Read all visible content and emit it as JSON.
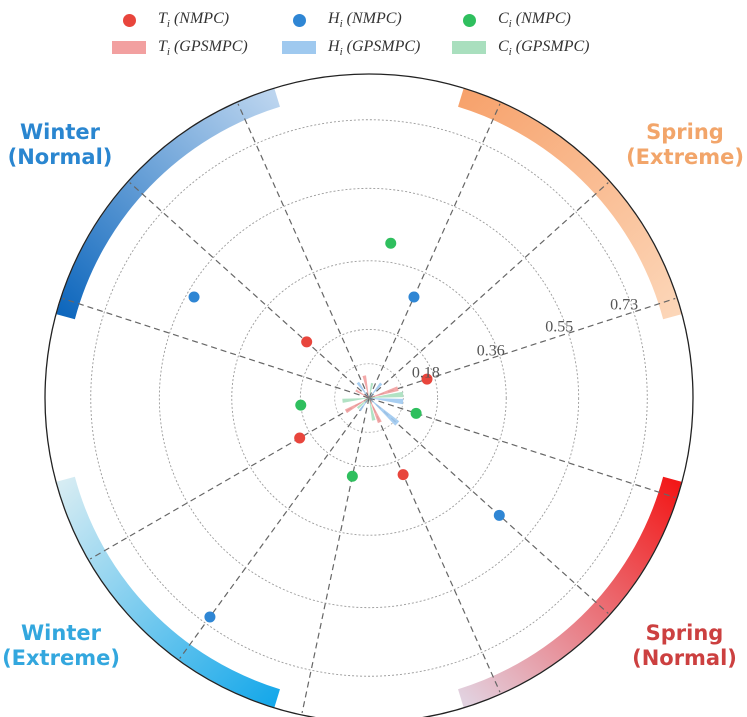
{
  "chart_data": {
    "type": "polar",
    "rlim": [
      0,
      0.85
    ],
    "radial_ticks": [
      "0.18",
      "0.36",
      "0.55",
      "0.73"
    ],
    "radial_tick_values": [
      0.18,
      0.36,
      0.55,
      0.73
    ],
    "legend": [
      {
        "symbol": "T",
        "sub": "i",
        "method": "(NMPC)",
        "marker": "dot",
        "color": "#e8453c"
      },
      {
        "symbol": "H",
        "sub": "i",
        "method": "(NMPC)",
        "marker": "dot",
        "color": "#2f86d4"
      },
      {
        "symbol": "C",
        "sub": "i",
        "method": "(NMPC)",
        "marker": "dot",
        "color": "#2fbf5e"
      },
      {
        "symbol": "T",
        "sub": "i",
        "method": "(GPSMPC)",
        "marker": "bar",
        "color": "#f2a0a0"
      },
      {
        "symbol": "H",
        "sub": "i",
        "method": "(GPSMPC)",
        "marker": "bar",
        "color": "#9fc9ef"
      },
      {
        "symbol": "C",
        "sub": "i",
        "method": "(GPSMPC)",
        "marker": "bar",
        "color": "#a9dfbe"
      }
    ],
    "seasons": [
      {
        "line1": "Spring",
        "line2": "(Extreme)",
        "color": "#f2a56a"
      },
      {
        "line1": "Spring",
        "line2": "(Normal)",
        "color": "#cc4040"
      },
      {
        "line1": "Winter",
        "line2": "(Extreme)",
        "color": "#33a7de"
      },
      {
        "line1": "Winter",
        "line2": "(Normal)",
        "color": "#2a86d0"
      }
    ],
    "arcs": [
      {
        "season": "Spring (Extreme)",
        "start_deg": 17,
        "end_deg": 75,
        "color_start": "#f7a26c",
        "color_end": "#fcd6b8"
      },
      {
        "season": "Spring (Normal)",
        "start_deg": 105,
        "end_deg": 163,
        "color_start": "#f21818",
        "color_end": "#e2d2e0"
      },
      {
        "season": "Winter (Extreme)",
        "start_deg": 197,
        "end_deg": 255,
        "color_start": "#16a8ea",
        "color_end": "#d6ecf3"
      },
      {
        "season": "Winter (Normal)",
        "start_deg": 285,
        "end_deg": 343,
        "color_start": "#0e67bd",
        "color_end": "#bcd5ef"
      }
    ],
    "spoke_angles_deg": [
      24,
      48,
      72,
      108,
      132,
      156,
      192,
      216,
      240,
      288,
      312,
      336
    ],
    "nmpc_points": [
      {
        "metric": "T",
        "angle_deg": 72,
        "r": 0.16
      },
      {
        "metric": "H",
        "angle_deg": 24,
        "r": 0.29
      },
      {
        "metric": "C",
        "angle_deg": 8,
        "r": 0.41
      },
      {
        "metric": "T",
        "angle_deg": 156,
        "r": 0.22
      },
      {
        "metric": "H",
        "angle_deg": 132,
        "r": 0.46
      },
      {
        "metric": "C",
        "angle_deg": 108,
        "r": 0.13
      },
      {
        "metric": "T",
        "angle_deg": 240,
        "r": 0.21
      },
      {
        "metric": "H",
        "angle_deg": 216,
        "r": 0.71
      },
      {
        "metric": "C",
        "angle_deg": 192,
        "r": 0.21
      },
      {
        "metric": "T",
        "angle_deg": 312,
        "r": 0.22
      },
      {
        "metric": "H",
        "angle_deg": 300,
        "r": 0.53
      },
      {
        "metric": "C",
        "angle_deg": 264,
        "r": 0.18
      }
    ],
    "gpsmpc_bars": [
      {
        "metric": "T",
        "angle_deg": 72,
        "r": 0.08
      },
      {
        "metric": "H",
        "angle_deg": 96,
        "r": 0.09
      },
      {
        "metric": "C",
        "angle_deg": 84,
        "r": 0.09
      },
      {
        "metric": "T",
        "angle_deg": 156,
        "r": 0.07
      },
      {
        "metric": "H",
        "angle_deg": 132,
        "r": 0.1
      },
      {
        "metric": "C",
        "angle_deg": 168,
        "r": 0.06
      },
      {
        "metric": "T",
        "angle_deg": 240,
        "r": 0.07
      },
      {
        "metric": "H",
        "angle_deg": 216,
        "r": 0.04
      },
      {
        "metric": "C",
        "angle_deg": 264,
        "r": 0.07
      },
      {
        "metric": "T",
        "angle_deg": 348,
        "r": 0.06
      },
      {
        "metric": "H",
        "angle_deg": 324,
        "r": 0.05
      },
      {
        "metric": "C",
        "angle_deg": 12,
        "r": 0.04
      },
      {
        "metric": "T",
        "angle_deg": 300,
        "r": 0.04
      },
      {
        "metric": "H",
        "angle_deg": 40,
        "r": 0.05
      },
      {
        "metric": "C",
        "angle_deg": 228,
        "r": 0.04
      }
    ]
  }
}
